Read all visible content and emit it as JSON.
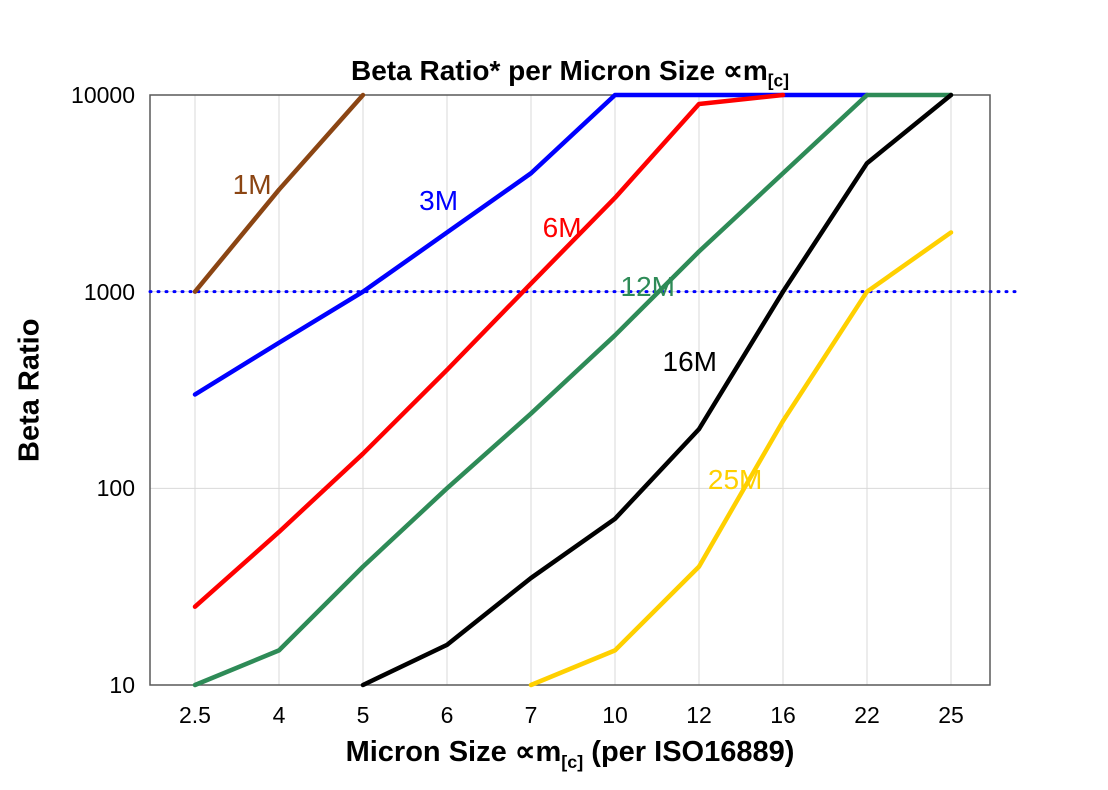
{
  "chart_data": {
    "type": "line",
    "title": {
      "text": "Beta Ratio* per Micron Size ∝m",
      "subscript": "[c]"
    },
    "xlabel": {
      "pre": "Micron Size ∝m",
      "subscript": "[c]",
      "post": " (per ISO16889)"
    },
    "ylabel": "Beta Ratio",
    "x_categories": [
      "2.5",
      "4",
      "5",
      "6",
      "7",
      "10",
      "12",
      "16",
      "22",
      "25"
    ],
    "y_scale": "log",
    "ylim": [
      10,
      10000
    ],
    "y_ticks": [
      10,
      100,
      1000,
      10000
    ],
    "grid": {
      "vertical_color": "#d9d9d9",
      "horizontal_color": "#d9d9d9",
      "frame_color": "#595959"
    },
    "reference_line": {
      "y": 1000,
      "color": "#0000ff",
      "style": "dotted"
    },
    "series": [
      {
        "name": "1M",
        "color": "#8B4513",
        "values": [
          1000,
          3300,
          10000,
          null,
          null,
          null,
          null,
          null,
          null,
          null
        ]
      },
      {
        "name": "3M",
        "color": "#0000FF",
        "values": [
          300,
          550,
          1000,
          2000,
          4000,
          10000,
          10000,
          10000,
          10000,
          null
        ]
      },
      {
        "name": "6M",
        "color": "#FF0000",
        "values": [
          25,
          60,
          150,
          400,
          1100,
          3000,
          9000,
          10000,
          null,
          null
        ]
      },
      {
        "name": "12M",
        "color": "#2E8B57",
        "values": [
          7,
          15,
          40,
          100,
          240,
          600,
          1600,
          4000,
          10000,
          10000
        ]
      },
      {
        "name": "16M",
        "color": "#000000",
        "values": [
          null,
          null,
          10,
          16,
          35,
          70,
          200,
          1000,
          4500,
          10000
        ]
      },
      {
        "name": "25M",
        "color": "#FFD000",
        "values": [
          null,
          null,
          null,
          null,
          6,
          15,
          40,
          220,
          1000,
          2000
        ]
      }
    ],
    "annotations": [
      {
        "text": "1M",
        "color": "#8B4513",
        "x_index": 0.68,
        "y": 3500
      },
      {
        "text": "3M",
        "color": "#0000FF",
        "x_index": 2.9,
        "y": 2900
      },
      {
        "text": "6M",
        "color": "#FF0000",
        "x_index": 4.37,
        "y": 2100
      },
      {
        "text": "12M",
        "color": "#2E8B57",
        "x_index": 5.39,
        "y": 1050
      },
      {
        "text": "16M",
        "color": "#000000",
        "x_index": 5.89,
        "y": 440
      },
      {
        "text": "25M",
        "color": "#FFD000",
        "x_index": 6.43,
        "y": 110
      }
    ]
  }
}
